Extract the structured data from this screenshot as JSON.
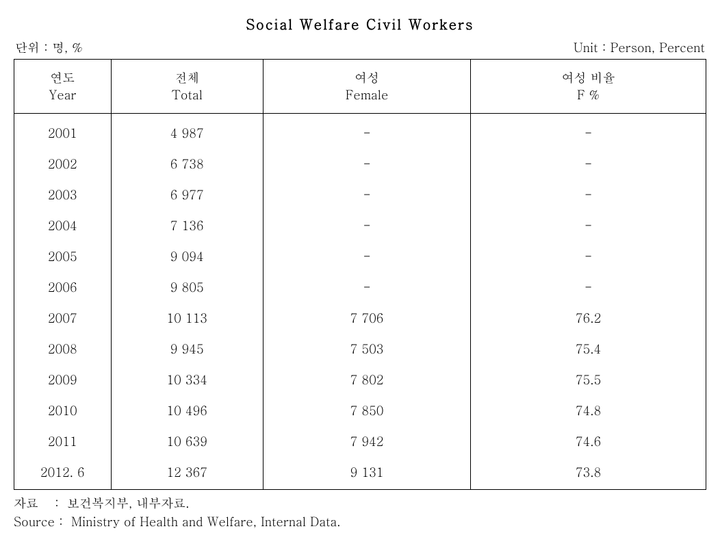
{
  "title": "Social  Welfare  Civil  Workers",
  "unit_left": "단위 : 명, %",
  "unit_right": "Unit : Person, Percent",
  "columns": [
    {
      "kr": "연도",
      "en": "Year"
    },
    {
      "kr": "전체",
      "en": "Total"
    },
    {
      "kr": "여성",
      "en": "Female"
    },
    {
      "kr": "여성 비율",
      "en": "F %"
    }
  ],
  "rows": [
    {
      "year": "2001",
      "total": " 4 987",
      "female": "-",
      "fpct": "-"
    },
    {
      "year": "2002",
      "total": " 6 738",
      "female": "-",
      "fpct": "-"
    },
    {
      "year": "2003",
      "total": " 6 977",
      "female": "-",
      "fpct": "-"
    },
    {
      "year": "2004",
      "total": " 7 136",
      "female": "-",
      "fpct": "-"
    },
    {
      "year": "2005",
      "total": " 9 094",
      "female": "-",
      "fpct": "-"
    },
    {
      "year": "2006",
      "total": " 9 805",
      "female": "-",
      "fpct": "-"
    },
    {
      "year": "2007",
      "total": "10 113",
      "female": "7 706",
      "fpct": "76.2"
    },
    {
      "year": "2008",
      "total": " 9 945",
      "female": "7 503",
      "fpct": "75.4"
    },
    {
      "year": "2009",
      "total": "10 334",
      "female": "7 802",
      "fpct": "75.5"
    },
    {
      "year": "2010",
      "total": "10 496",
      "female": "7 850",
      "fpct": "74.8"
    },
    {
      "year": "2011",
      "total": "10 639",
      "female": "7 942",
      "fpct": "74.6"
    },
    {
      "year": "2012. 6",
      "total": "12 367",
      "female": "9 131",
      "fpct": "73.8"
    }
  ],
  "source_kr_label": "자료    :  ",
  "source_kr_text": "보건복지부, 내부자료.",
  "source_en_label": "Source :  ",
  "source_en_text": "Ministry of Health and Welfare, Internal Data.",
  "styling": {
    "border_color": "#000000",
    "background_color": "#ffffff",
    "text_color": "#000000",
    "font_family": "Batang, Times New Roman, serif",
    "title_fontsize": 20,
    "body_fontsize": 18,
    "col_widths_pct": [
      14,
      22,
      30,
      34
    ]
  }
}
